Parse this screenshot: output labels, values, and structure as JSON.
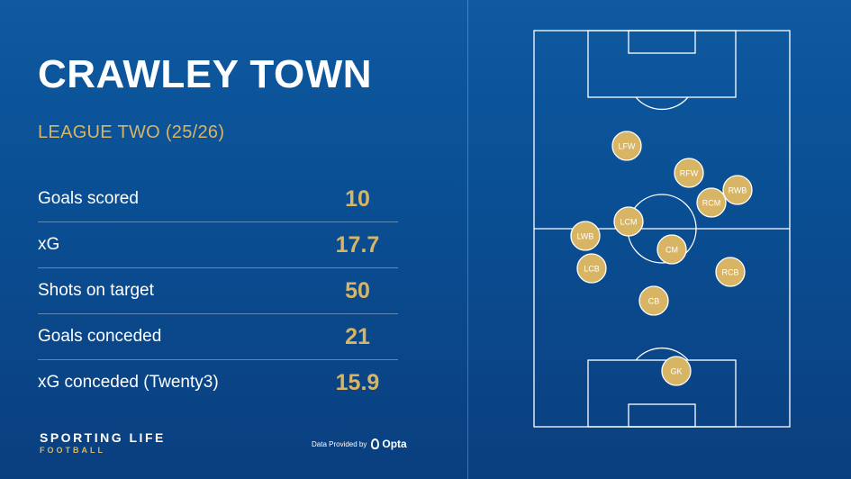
{
  "title": "CRAWLEY TOWN",
  "league": "LEAGUE TWO (25/26)",
  "stats": [
    {
      "label": "Goals scored",
      "value": "10"
    },
    {
      "label": "xG",
      "value": "17.7"
    },
    {
      "label": "Shots on target",
      "value": "50"
    },
    {
      "label": "Goals conceded",
      "value": "21"
    },
    {
      "label": "xG conceded (Twenty3)",
      "value": "15.9"
    }
  ],
  "brand": {
    "main": "SPORTING LIFE",
    "sub": "FOOTBALL"
  },
  "provider": {
    "prefix": "Data Provided by",
    "name": "Opta"
  },
  "positions": [
    "LFW",
    "RFW",
    "RWB",
    "RCM",
    "LCM",
    "LWB",
    "CM",
    "LCB",
    "RCB",
    "CB",
    "GK"
  ],
  "colors": {
    "accent": "#d8b564",
    "background": "#0a4f94",
    "lines": "#ffffff"
  }
}
